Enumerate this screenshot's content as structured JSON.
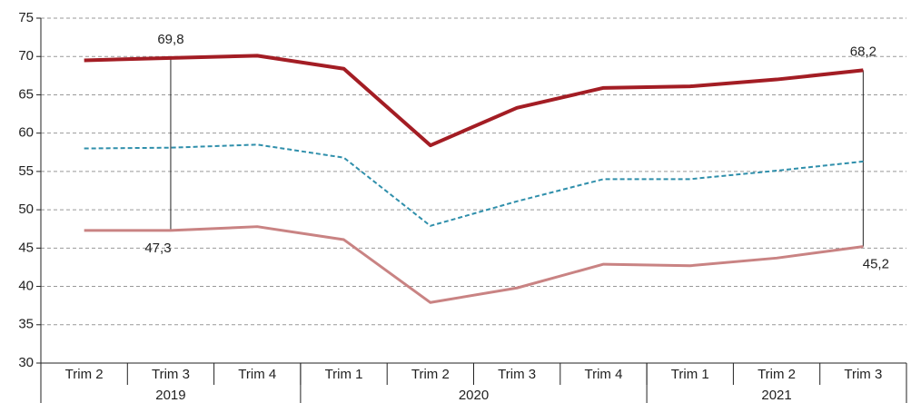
{
  "chart_data": {
    "type": "line",
    "categories": [
      "Trim 2",
      "Trim 3",
      "Trim 4",
      "Trim 1",
      "Trim 2",
      "Trim 3",
      "Trim 4",
      "Trim 1",
      "Trim 2",
      "Trim 3"
    ],
    "groups": [
      {
        "label": "2019",
        "count": 3
      },
      {
        "label": "2020",
        "count": 4
      },
      {
        "label": "2021",
        "count": 3
      }
    ],
    "series": [
      {
        "color": "#a31d24",
        "style": "solid",
        "width": 4,
        "values": [
          69.5,
          69.8,
          70.1,
          68.4,
          58.4,
          63.3,
          65.9,
          66.1,
          67.0,
          68.2
        ],
        "value_labels": [
          null,
          "69,8",
          null,
          null,
          null,
          null,
          null,
          null,
          null,
          "68,2"
        ]
      },
      {
        "color": "#2f8fab",
        "style": "dashed",
        "width": 2,
        "values": [
          58.0,
          58.1,
          58.5,
          56.8,
          47.9,
          51.1,
          54.0,
          54.0,
          55.1,
          56.3
        ]
      },
      {
        "color": "#c98383",
        "style": "solid",
        "width": 3,
        "values": [
          47.3,
          47.3,
          47.8,
          46.1,
          37.9,
          39.8,
          42.9,
          42.7,
          43.7,
          45.2
        ],
        "value_labels": [
          null,
          "47,3",
          null,
          null,
          null,
          null,
          null,
          null,
          null,
          "45,2"
        ]
      }
    ],
    "ylim": [
      30,
      75
    ],
    "yticks": [
      30,
      35,
      40,
      45,
      50,
      55,
      60,
      65,
      70,
      75
    ],
    "grid": true
  }
}
